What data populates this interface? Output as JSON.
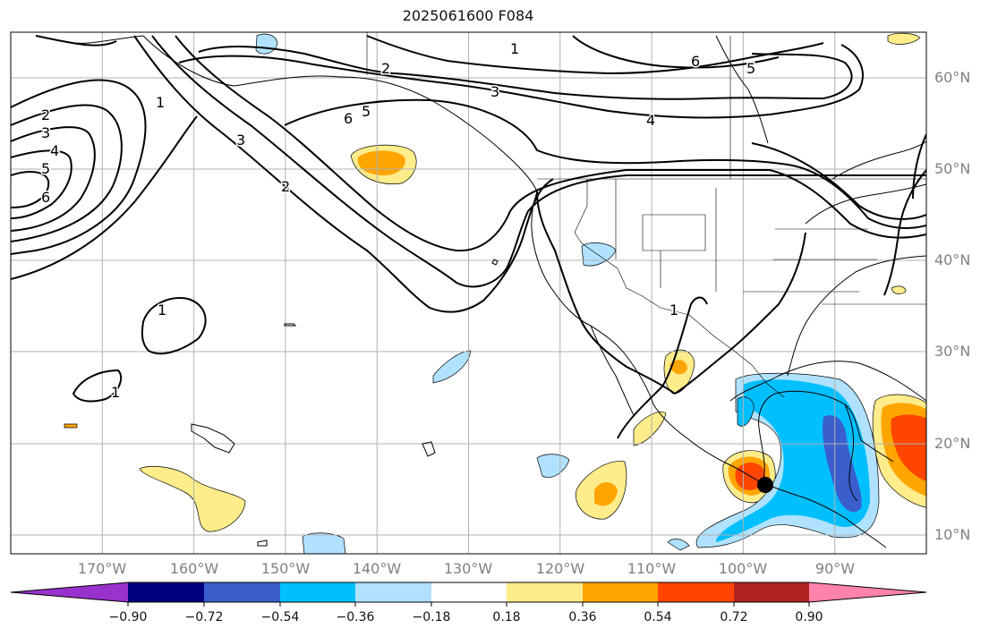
{
  "title": "2025061600 F084",
  "map": {
    "region": "Eastern Pacific / North America",
    "projection": "PlateCarree",
    "lon_range_deg": [
      -180,
      -80
    ],
    "lat_range_deg": [
      8,
      65
    ],
    "gridlines": true,
    "latitude_labels": [
      "60°N",
      "50°N",
      "40°N",
      "30°N",
      "20°N",
      "10°N"
    ],
    "longitude_labels": [
      "170°W",
      "160°W",
      "150°W",
      "140°W",
      "130°W",
      "120°W",
      "110°W",
      "100°W",
      "90°W"
    ],
    "contour_labels": [
      "1",
      "2",
      "3",
      "4",
      "5",
      "6"
    ],
    "marker": {
      "lon": -97,
      "lat": 15.5,
      "color": "#000000"
    }
  },
  "colorbar": {
    "orientation": "horizontal",
    "extend": "both",
    "ticks": [
      "−0.90",
      "−0.72",
      "−0.54",
      "−0.36",
      "−0.18",
      "0.18",
      "0.36",
      "0.54",
      "0.72",
      "0.90"
    ],
    "colors": [
      "#9932cc",
      "#000080",
      "#3a5fcd",
      "#00bfff",
      "#b0e2ff",
      "#ffffff",
      "#ffec8b",
      "#ffa500",
      "#ff4500",
      "#b22222",
      "#ff82ab"
    ]
  }
}
